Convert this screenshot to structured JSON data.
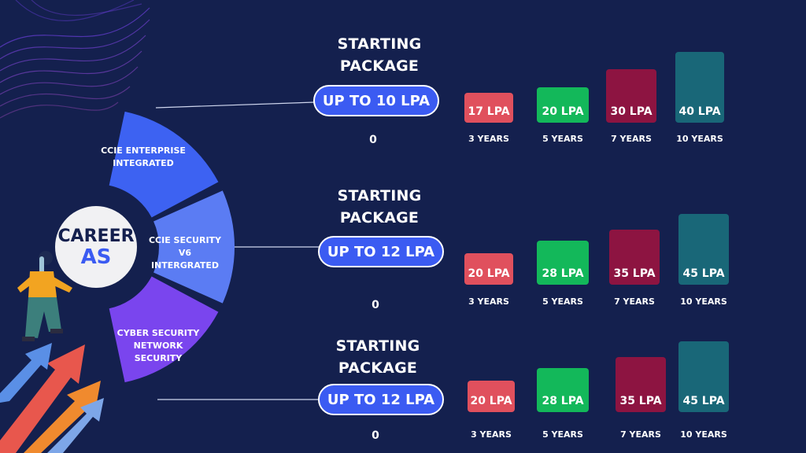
{
  "hub": {
    "line1": "CAREER",
    "line2": "AS"
  },
  "courses": [
    {
      "line1": "CCIE ENTERPRISE",
      "line2": "INTEGRATED",
      "line3": ""
    },
    {
      "line1": "CCIE SECURITY",
      "line2": "V6 INTERGRATED",
      "line3": ""
    },
    {
      "line1": "CYBER SECURITY",
      "line2": "NETWORK",
      "line3": "SECURITY"
    }
  ],
  "colors": {
    "background": "#14204e",
    "pill": "#3b5bf2",
    "segment_1": "#3d62f2",
    "segment_2": "#5b7cf3",
    "segment_3": "#7a45ee",
    "bar_3y": "#e0505d",
    "bar_5y": "#13b85a",
    "bar_7y": "#8d1441",
    "bar_10y": "#196778"
  },
  "chart_data": [
    {
      "type": "bar",
      "title_line1": "STARTING",
      "title_line2": "PACKAGE",
      "starting": "UP TO 10 LPA",
      "baseline_label": "0",
      "categories": [
        "3 YEARS",
        "5 YEARS",
        "7 YEARS",
        "10 YEARS"
      ],
      "values": [
        17,
        20,
        30,
        40
      ],
      "data_labels": [
        "17 LPA",
        "20 LPA",
        "30 LPA",
        "40 LPA"
      ]
    },
    {
      "type": "bar",
      "title_line1": "STARTING",
      "title_line2": "PACKAGE",
      "starting": "UP TO 12 LPA",
      "baseline_label": "0",
      "categories": [
        "3 YEARS",
        "5 YEARS",
        "7 YEARS",
        "10 YEARS"
      ],
      "values": [
        20,
        28,
        35,
        45
      ],
      "data_labels": [
        "20 LPA",
        "28 LPA",
        "35 LPA",
        "45 LPA"
      ]
    },
    {
      "type": "bar",
      "title_line1": "STARTING",
      "title_line2": "PACKAGE",
      "starting": "UP TO 12 LPA",
      "baseline_label": "0",
      "categories": [
        "3 YEARS",
        "5 YEARS",
        "7 YEARS",
        "10 YEARS"
      ],
      "values": [
        20,
        28,
        35,
        45
      ],
      "data_labels": [
        "20 LPA",
        "28 LPA",
        "35 LPA",
        "45 LPA"
      ]
    }
  ]
}
